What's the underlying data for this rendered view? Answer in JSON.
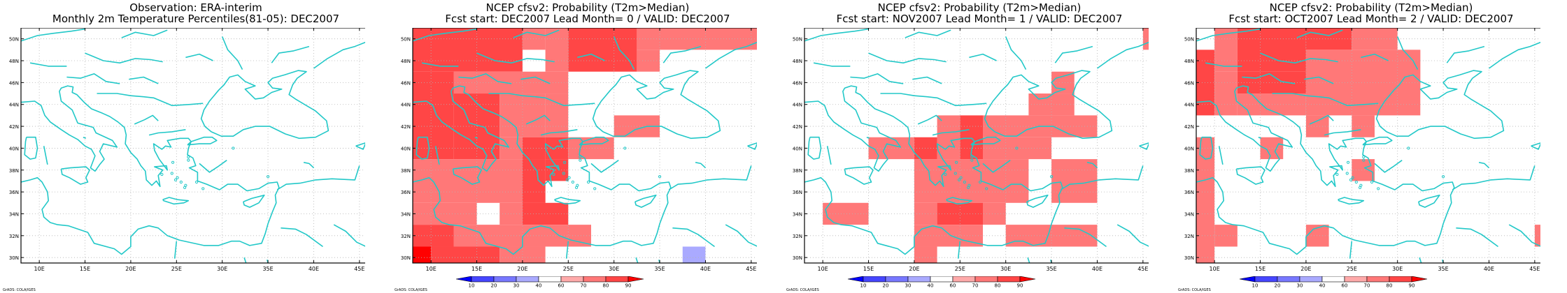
{
  "colors": {
    "background": "#ffffff",
    "coastline": "#22c8c8",
    "grid": "#b4b4b4",
    "frame": "#000000",
    "levels": [
      "#0000ff",
      "#4646ff",
      "#7878ff",
      "#aaaaff",
      "#ffffff",
      "#ffaaaa",
      "#ff7878",
      "#ff4646",
      "#ff0000"
    ]
  },
  "map": {
    "lon_range": [
      8,
      47
    ],
    "lat_range": [
      29.5,
      51
    ],
    "lon_ticks": [
      "10E",
      "15E",
      "20E",
      "25E",
      "30E",
      "35E",
      "40E",
      "45E"
    ],
    "lat_ticks": [
      "30N",
      "32N",
      "34N",
      "36N",
      "38N",
      "40N",
      "42N",
      "44N",
      "46N",
      "48N",
      "50N"
    ],
    "grid": "dotted"
  },
  "colorbar": {
    "labels": [
      "10",
      "20",
      "30",
      "40",
      "60",
      "70",
      "80",
      "90"
    ]
  },
  "panels": [
    {
      "title_line1": "Observation: ERA-interim",
      "title_line2": "Monthly 2m Temperature Percentiles(81-05): DEC2007",
      "credit": "GrADS: COLA/IGES",
      "has_colorbar": false,
      "cells": []
    },
    {
      "title_line1": "NCEP cfsv2: Probability (T2m>Median)",
      "title_line2": "Fcst start: DEC2007  Lead Month= 0 / VALID: DEC2007",
      "credit": "GrADS: COLA/IGES",
      "has_colorbar": true,
      "cells": [
        {
          "lon": [
            8,
            20
          ],
          "lat": [
            47,
            51
          ],
          "level": 7
        },
        {
          "lon": [
            20,
            22.5
          ],
          "lat": [
            49,
            51
          ],
          "level": 6
        },
        {
          "lon": [
            22.5,
            25
          ],
          "lat": [
            47,
            51
          ],
          "level": 6
        },
        {
          "lon": [
            25,
            32.5
          ],
          "lat": [
            47,
            51
          ],
          "level": 7
        },
        {
          "lon": [
            32.5,
            47
          ],
          "lat": [
            49,
            51
          ],
          "level": 6
        },
        {
          "lon": [
            32.5,
            35
          ],
          "lat": [
            47,
            49
          ],
          "level": 6
        },
        {
          "lon": [
            8,
            12.5
          ],
          "lat": [
            39,
            47
          ],
          "level": 7
        },
        {
          "lon": [
            12.5,
            25
          ],
          "lat": [
            45,
            47
          ],
          "level": 6
        },
        {
          "lon": [
            12.5,
            17.5
          ],
          "lat": [
            39,
            45
          ],
          "level": 7
        },
        {
          "lon": [
            17.5,
            22.5
          ],
          "lat": [
            41,
            45
          ],
          "level": 6
        },
        {
          "lon": [
            22.5,
            25
          ],
          "lat": [
            41,
            45
          ],
          "level": 6
        },
        {
          "lon": [
            30,
            35
          ],
          "lat": [
            41,
            43
          ],
          "level": 6
        },
        {
          "lon": [
            17.5,
            20
          ],
          "lat": [
            39,
            41
          ],
          "level": 6
        },
        {
          "lon": [
            20,
            22.5
          ],
          "lat": [
            39,
            41
          ],
          "level": 7
        },
        {
          "lon": [
            22.5,
            25
          ],
          "lat": [
            39,
            41
          ],
          "level": 7
        },
        {
          "lon": [
            25,
            30
          ],
          "lat": [
            39,
            41
          ],
          "level": 6
        },
        {
          "lon": [
            8,
            22.5
          ],
          "lat": [
            35,
            39
          ],
          "level": 6
        },
        {
          "lon": [
            20,
            22.5
          ],
          "lat": [
            35,
            39
          ],
          "level": 7
        },
        {
          "lon": [
            22.5,
            25
          ],
          "lat": [
            37,
            39
          ],
          "level": 7
        },
        {
          "lon": [
            8,
            15
          ],
          "lat": [
            33,
            35
          ],
          "level": 6
        },
        {
          "lon": [
            17.5,
            20
          ],
          "lat": [
            33,
            35
          ],
          "level": 6
        },
        {
          "lon": [
            20,
            25
          ],
          "lat": [
            33,
            35
          ],
          "level": 7
        },
        {
          "lon": [
            8,
            12.5
          ],
          "lat": [
            31,
            33
          ],
          "level": 7
        },
        {
          "lon": [
            12.5,
            27.5
          ],
          "lat": [
            31,
            33
          ],
          "level": 6
        },
        {
          "lon": [
            8,
            10
          ],
          "lat": [
            29.5,
            31
          ],
          "level": 8
        },
        {
          "lon": [
            10,
            17.5
          ],
          "lat": [
            29.5,
            31
          ],
          "level": 7
        },
        {
          "lon": [
            17.5,
            22.5
          ],
          "lat": [
            29.5,
            31
          ],
          "level": 6
        },
        {
          "lon": [
            35,
            40
          ],
          "lat": [
            31,
            33
          ],
          "level": 4
        },
        {
          "lon": [
            35,
            37.5
          ],
          "lat": [
            29.5,
            31
          ],
          "level": 4
        },
        {
          "lon": [
            37.5,
            40
          ],
          "lat": [
            29.5,
            31
          ],
          "level": 3
        }
      ]
    },
    {
      "title_line1": "NCEP cfsv2: Probability (T2m>Median)",
      "title_line2": "Fcst start: NOV2007  Lead Month= 1 / VALID: DEC2007",
      "credit": "GrADS: COLA/IGES",
      "has_colorbar": true,
      "cells": [
        {
          "lon": [
            45,
            47
          ],
          "lat": [
            49,
            51
          ],
          "level": 6
        },
        {
          "lon": [
            35,
            37.5
          ],
          "lat": [
            45,
            47
          ],
          "level": 6
        },
        {
          "lon": [
            32.5,
            37.5
          ],
          "lat": [
            43,
            45
          ],
          "level": 6
        },
        {
          "lon": [
            22.5,
            25
          ],
          "lat": [
            39,
            43
          ],
          "level": 6
        },
        {
          "lon": [
            25,
            27.5
          ],
          "lat": [
            39,
            43
          ],
          "level": 7
        },
        {
          "lon": [
            27.5,
            40
          ],
          "lat": [
            41,
            43
          ],
          "level": 6
        },
        {
          "lon": [
            15,
            20
          ],
          "lat": [
            39,
            41
          ],
          "level": 6
        },
        {
          "lon": [
            20,
            22.5
          ],
          "lat": [
            39,
            41
          ],
          "level": 7
        },
        {
          "lon": [
            27.5,
            35
          ],
          "lat": [
            39,
            41
          ],
          "level": 6
        },
        {
          "lon": [
            20,
            32.5
          ],
          "lat": [
            35,
            39
          ],
          "level": 6
        },
        {
          "lon": [
            35,
            40
          ],
          "lat": [
            35,
            39
          ],
          "level": 6
        },
        {
          "lon": [
            10,
            15
          ],
          "lat": [
            33,
            35
          ],
          "level": 6
        },
        {
          "lon": [
            20,
            22.5
          ],
          "lat": [
            33,
            35
          ],
          "level": 6
        },
        {
          "lon": [
            22.5,
            27.5
          ],
          "lat": [
            33,
            35
          ],
          "level": 7
        },
        {
          "lon": [
            27.5,
            30
          ],
          "lat": [
            33,
            35
          ],
          "level": 6
        },
        {
          "lon": [
            20,
            27.5
          ],
          "lat": [
            31,
            33
          ],
          "level": 6
        },
        {
          "lon": [
            30,
            40
          ],
          "lat": [
            31,
            33
          ],
          "level": 6
        },
        {
          "lon": [
            20,
            22.5
          ],
          "lat": [
            29.5,
            31
          ],
          "level": 6
        }
      ]
    },
    {
      "title_line1": "NCEP cfsv2: Probability (T2m>Median)",
      "title_line2": "Fcst start: OCT2007  Lead Month= 2 / VALID: DEC2007",
      "credit": "GrADS: COLA/IGES",
      "has_colorbar": true,
      "cells": [
        {
          "lon": [
            10,
            12.5
          ],
          "lat": [
            47,
            51
          ],
          "level": 6
        },
        {
          "lon": [
            12.5,
            20
          ],
          "lat": [
            47,
            51
          ],
          "level": 7
        },
        {
          "lon": [
            20,
            25
          ],
          "lat": [
            49,
            51
          ],
          "level": 7
        },
        {
          "lon": [
            25,
            30
          ],
          "lat": [
            49,
            51
          ],
          "level": 6
        },
        {
          "lon": [
            8,
            10
          ],
          "lat": [
            43,
            49
          ],
          "level": 7
        },
        {
          "lon": [
            12.5,
            20
          ],
          "lat": [
            45,
            47
          ],
          "level": 7
        },
        {
          "lon": [
            10,
            12.5
          ],
          "lat": [
            43,
            47
          ],
          "level": 6
        },
        {
          "lon": [
            20,
            32.5
          ],
          "lat": [
            43,
            49
          ],
          "level": 6
        },
        {
          "lon": [
            12.5,
            20
          ],
          "lat": [
            43,
            45
          ],
          "level": 6
        },
        {
          "lon": [
            20,
            22.5
          ],
          "lat": [
            41,
            43
          ],
          "level": 6
        },
        {
          "lon": [
            25,
            27.5
          ],
          "lat": [
            41,
            43
          ],
          "level": 6
        },
        {
          "lon": [
            8,
            10
          ],
          "lat": [
            29.5,
            41
          ],
          "level": 6
        },
        {
          "lon": [
            15,
            17.5
          ],
          "lat": [
            39,
            41
          ],
          "level": 6
        },
        {
          "lon": [
            25,
            27.5
          ],
          "lat": [
            37,
            39
          ],
          "level": 6
        },
        {
          "lon": [
            10,
            12.5
          ],
          "lat": [
            31,
            33
          ],
          "level": 6
        },
        {
          "lon": [
            20,
            22.5
          ],
          "lat": [
            31,
            33
          ],
          "level": 6
        },
        {
          "lon": [
            45,
            47
          ],
          "lat": [
            31,
            33
          ],
          "level": 6
        },
        {
          "lon": [
            42.5,
            47
          ],
          "lat": [
            45,
            49
          ],
          "level": 4
        },
        {
          "lon": [
            32.5,
            42.5
          ],
          "lat": [
            43,
            45
          ],
          "level": 4
        },
        {
          "lon": [
            35,
            37.5
          ],
          "lat": [
            41,
            43
          ],
          "level": 4
        },
        {
          "lon": [
            40,
            42.5
          ],
          "lat": [
            41,
            43
          ],
          "level": 4
        },
        {
          "lon": [
            37.5,
            40
          ],
          "lat": [
            37,
            39
          ],
          "level": 4
        },
        {
          "lon": [
            32.5,
            42.5
          ],
          "lat": [
            35,
            37
          ],
          "level": 4
        },
        {
          "lon": [
            37.5,
            40
          ],
          "lat": [
            33,
            35
          ],
          "level": 4
        },
        {
          "lon": [
            40,
            42.5
          ],
          "lat": [
            29.5,
            31
          ],
          "level": 4
        }
      ]
    }
  ]
}
